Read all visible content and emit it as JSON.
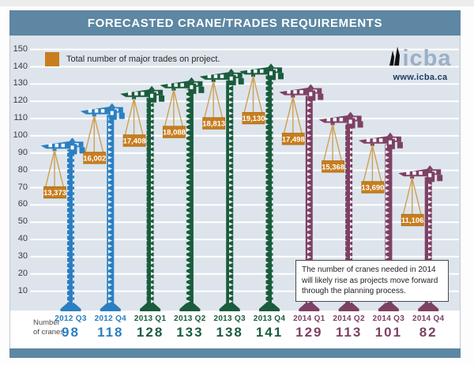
{
  "title": "FORECASTED CRANE/TRADES REQUIREMENTS",
  "legend": {
    "label": "Total number of major trades on project."
  },
  "logo": {
    "brand": "icba",
    "url": "www.icba.ca"
  },
  "y_axis": {
    "ticks": [
      150,
      140,
      130,
      120,
      110,
      100,
      90,
      80,
      70,
      60,
      50,
      40,
      30,
      20,
      10
    ]
  },
  "x_axis": {
    "row_label": [
      "Number",
      "of cranes"
    ]
  },
  "annotation": {
    "text": "The number of cranes needed in 2014 will likely rise as projects move forward through the planning process."
  },
  "chart_data": {
    "type": "bar",
    "title": "FORECASTED CRANE/TRADES REQUIREMENTS",
    "categories": [
      "2012 Q3",
      "2012 Q4",
      "2013 Q1",
      "2013 Q2",
      "2013 Q3",
      "2013 Q4",
      "2014 Q1",
      "2014 Q2",
      "2014 Q3",
      "2014 Q4"
    ],
    "series": [
      {
        "name": "Number of cranes",
        "values": [
          98,
          118,
          128,
          133,
          138,
          141,
          129,
          113,
          101,
          82
        ]
      },
      {
        "name": "Total number of major trades on project",
        "values": [
          13373,
          16002,
          17408,
          18088,
          18813,
          19130,
          17498,
          15368,
          13690,
          11106
        ]
      }
    ],
    "ylim": [
      0,
      150
    ],
    "y_tick_step": 10,
    "grid": true,
    "legend_position": "top-left",
    "group_colors": {
      "2012": "#2b7fc1",
      "2013": "#1a5c3e",
      "2014": "#7d4164"
    }
  },
  "colors": {
    "header_bg": "#5d87a3",
    "plot_bg": "#dde4ec",
    "accent_orange": "#c87e1f",
    "label_border": "#a8690f",
    "cable": "#cfa050",
    "brand_blue": "#9bb0c4",
    "url_navy": "#1c3c5e"
  }
}
